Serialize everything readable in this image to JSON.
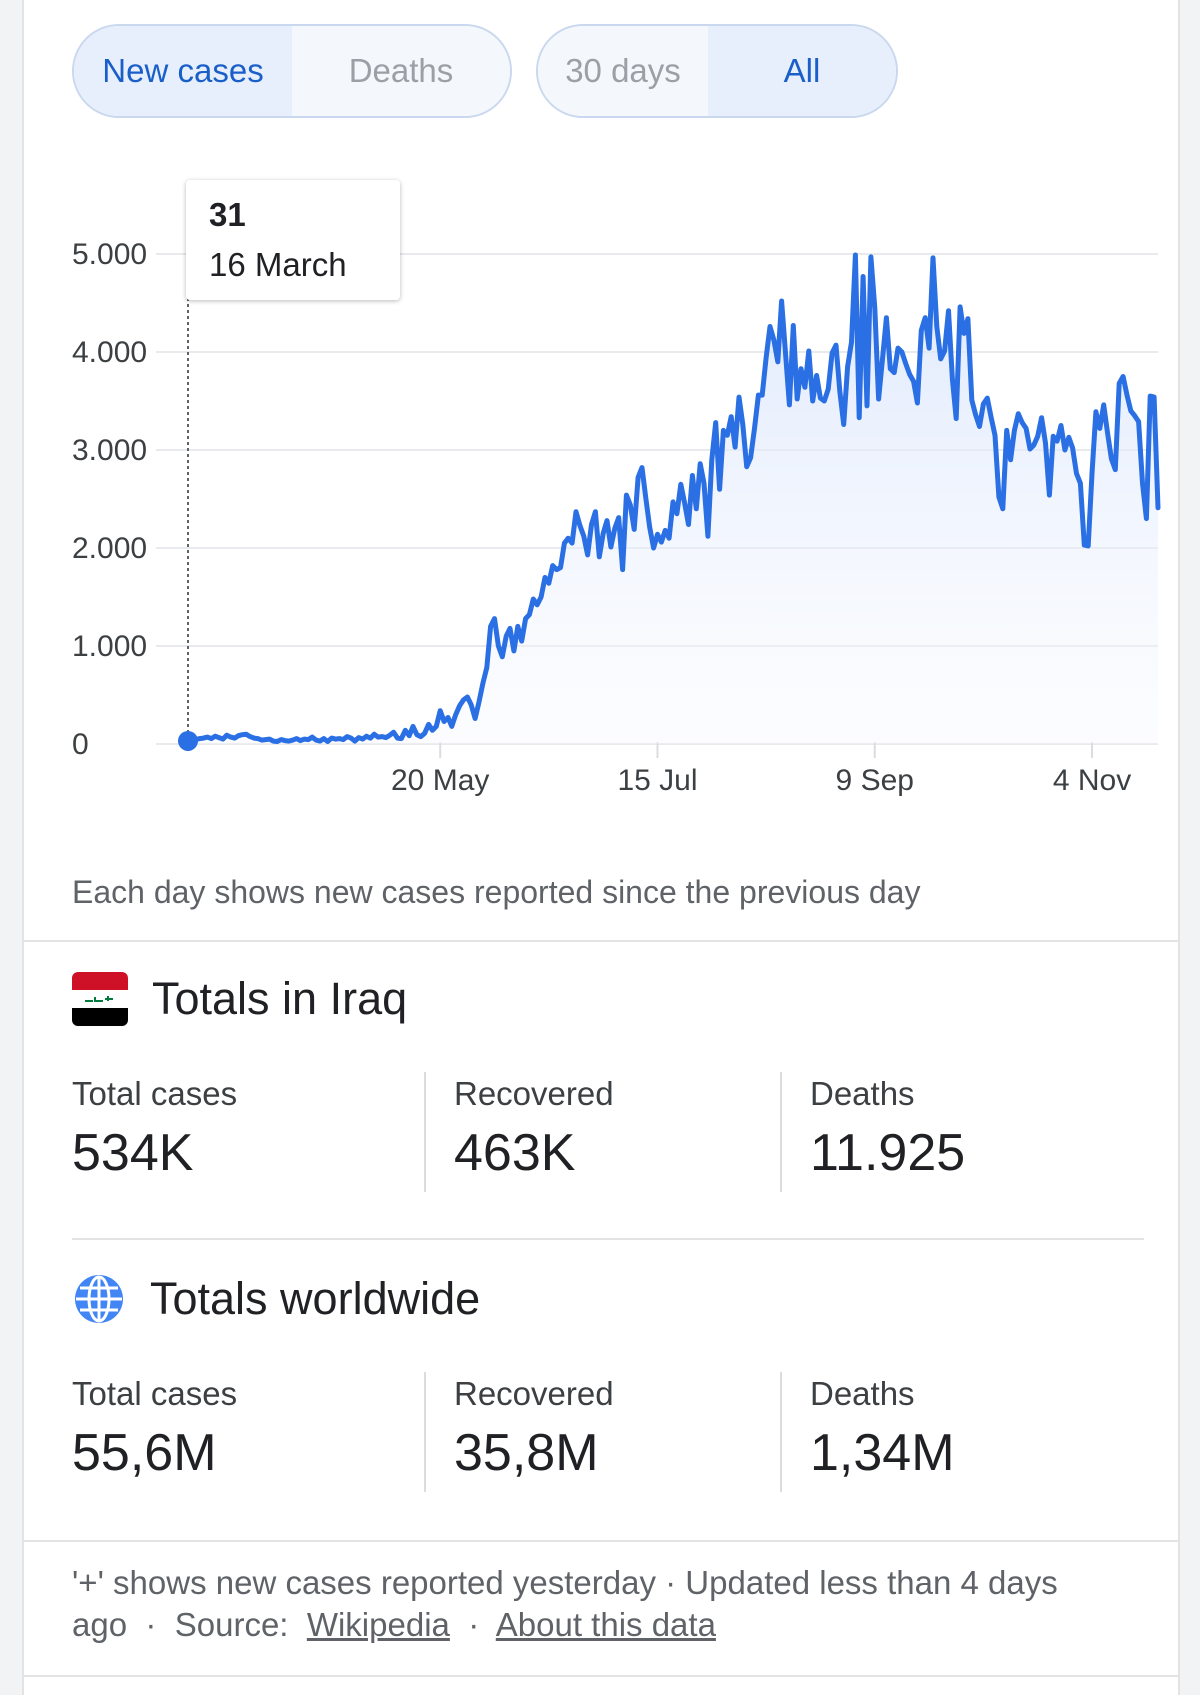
{
  "toggles": {
    "metric": [
      {
        "label": "New cases",
        "active": true
      },
      {
        "label": "Deaths",
        "active": false
      }
    ],
    "range": [
      {
        "label": "30 days",
        "active": false
      },
      {
        "label": "All",
        "active": true
      }
    ]
  },
  "tooltip": {
    "value": "31",
    "date": "16 March"
  },
  "chart_data": {
    "type": "area",
    "y_ticks": [
      "0",
      "1.000",
      "2.000",
      "3.000",
      "4.000",
      "5.000"
    ],
    "ylim": [
      0,
      5000
    ],
    "x_labels": [
      {
        "label": "20 May",
        "day": 65
      },
      {
        "label": "15 Jul",
        "day": 121
      },
      {
        "label": "9 Sep",
        "day": 177
      },
      {
        "label": "4 Nov",
        "day": 233
      }
    ],
    "start_date": "16 March",
    "values": [
      31,
      40,
      45,
      55,
      60,
      70,
      55,
      80,
      65,
      50,
      90,
      70,
      60,
      85,
      95,
      100,
      75,
      60,
      55,
      40,
      45,
      50,
      30,
      25,
      45,
      35,
      30,
      40,
      55,
      35,
      50,
      45,
      70,
      40,
      30,
      55,
      25,
      60,
      50,
      55,
      45,
      75,
      60,
      30,
      65,
      50,
      80,
      60,
      100,
      70,
      75,
      65,
      90,
      120,
      60,
      55,
      140,
      85,
      180,
      95,
      75,
      110,
      200,
      140,
      180,
      340,
      230,
      270,
      180,
      300,
      390,
      450,
      480,
      400,
      260,
      430,
      620,
      780,
      1200,
      1280,
      1000,
      890,
      1100,
      1180,
      950,
      1200,
      1050,
      1280,
      1320,
      1480,
      1420,
      1500,
      1700,
      1640,
      1820,
      1780,
      1800,
      2050,
      2100,
      2050,
      2370,
      2230,
      2120,
      1930,
      2240,
      2370,
      1910,
      2150,
      2280,
      2010,
      2200,
      2310,
      1780,
      2540,
      2440,
      2190,
      2720,
      2820,
      2510,
      2210,
      2000,
      2140,
      2060,
      2180,
      2100,
      2470,
      2350,
      2650,
      2460,
      2240,
      2740,
      2400,
      2860,
      2660,
      2120,
      2900,
      3280,
      2600,
      3200,
      3150,
      3340,
      3030,
      3540,
      3260,
      2830,
      2920,
      3220,
      3560,
      3560,
      3940,
      4260,
      4120,
      3900,
      4520,
      3990,
      3460,
      4270,
      3520,
      3830,
      3640,
      4010,
      3500,
      3760,
      3530,
      3500,
      3620,
      3990,
      4070,
      3600,
      3260,
      3850,
      4100,
      4990,
      3330,
      4770,
      3450,
      4970,
      4450,
      3520,
      3930,
      4350,
      3830,
      3790,
      4040,
      4000,
      3880,
      3770,
      3700,
      3480,
      4220,
      4350,
      4040,
      4960,
      4260,
      3930,
      4010,
      4420,
      3720,
      3320,
      4460,
      4190,
      4340,
      3510,
      3360,
      3240,
      3470,
      3530,
      3330,
      3150,
      2520,
      2400,
      3200,
      2900,
      3200,
      3370,
      3280,
      3220,
      3010,
      3050,
      3140,
      3330,
      3070,
      2540,
      3140,
      3090,
      3250,
      3000,
      3130,
      3020,
      2760,
      2660,
      2030,
      2020,
      2760,
      3390,
      3220,
      3460,
      3170,
      2910,
      2800,
      3680,
      3750,
      3560,
      3400,
      3350,
      3290,
      2660,
      2300,
      3550,
      3540,
      2410
    ]
  },
  "note": "Each day shows new cases reported since the previous day",
  "iraq": {
    "title": "Totals in Iraq",
    "stats": [
      {
        "label": "Total cases",
        "value": "534K"
      },
      {
        "label": "Recovered",
        "value": "463K"
      },
      {
        "label": "Deaths",
        "value": "11.925"
      }
    ]
  },
  "world": {
    "title": "Totals worldwide",
    "stats": [
      {
        "label": "Total cases",
        "value": "55,6M"
      },
      {
        "label": "Recovered",
        "value": "35,8M"
      },
      {
        "label": "Deaths",
        "value": "1,34M"
      }
    ]
  },
  "footer": {
    "text1": "'+' shows new cases reported yesterday · Updated less than 4 days",
    "text2": "ago",
    "sep": "·",
    "source_label": "Source:",
    "source_link": "Wikipedia",
    "about_link": "About this data"
  },
  "colors": {
    "line": "#2a6fe3",
    "accent": "#1a5fc9"
  }
}
